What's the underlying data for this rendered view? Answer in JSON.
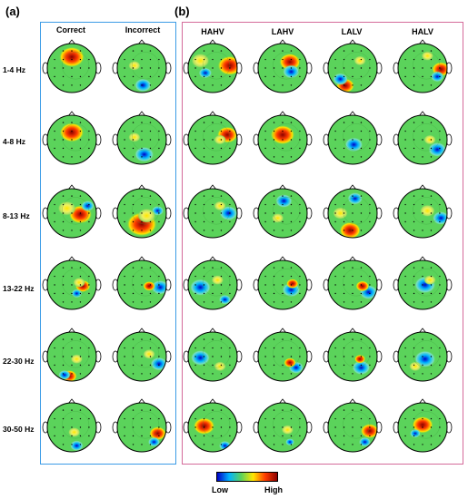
{
  "panels": {
    "a": {
      "label": "(a)",
      "columns": [
        "Correct",
        "Incorrect"
      ],
      "border_color": "#3b9be6"
    },
    "b": {
      "label": "(b)",
      "columns": [
        "HAHV",
        "LAHV",
        "LALV",
        "HALV"
      ],
      "border_color": "#d46a9a"
    }
  },
  "rows": [
    "1-4 Hz",
    "4-8 Hz",
    "8-13 Hz",
    "13-22 Hz",
    "22-30 Hz",
    "30-50 Hz"
  ],
  "colorbar": {
    "low_label": "Low",
    "high_label": "High"
  },
  "colors": {
    "head_fill": "#5bd35b",
    "scale": [
      "#0000c8",
      "#00b4ff",
      "#5bd35b",
      "#ffe600",
      "#ff3c00",
      "#8c0000"
    ]
  }
}
